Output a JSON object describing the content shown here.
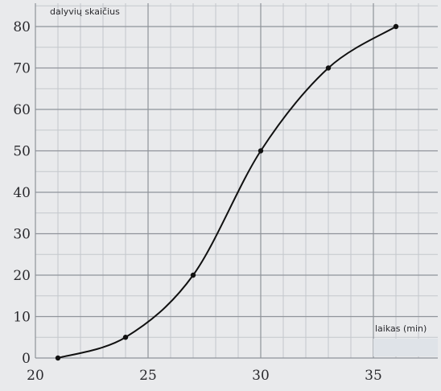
{
  "chart_data": {
    "type": "line",
    "title": "",
    "ylabel": "dalyvių skaičius",
    "xlabel": "laikas (min)",
    "xlim": [
      20,
      37
    ],
    "ylim": [
      0,
      80
    ],
    "x_ticks": [
      "20",
      "25",
      "30",
      "35"
    ],
    "y_ticks": [
      "0",
      "10",
      "20",
      "30",
      "40",
      "50",
      "60",
      "70",
      "80"
    ],
    "grid": true,
    "x": [
      21,
      24,
      27,
      30,
      33,
      36
    ],
    "y": [
      0,
      5,
      20,
      50,
      70,
      80
    ],
    "line_color": "#111111",
    "answer_box_color": "#dfe3e8"
  }
}
